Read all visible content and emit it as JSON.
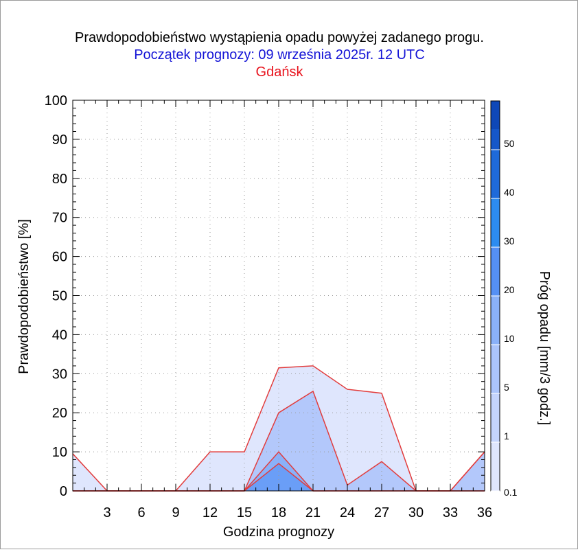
{
  "chart_data": {
    "type": "area",
    "title": "Prawdopodobieństwo wystąpienia opadu powyżej zadanego progu.",
    "subtitle": "Początek prognozy: 09 września 2025r. 12 UTC",
    "location": "Gdańsk",
    "xlabel": "Godzina prognozy",
    "ylabel": "Prawdopodobieństwo [%]",
    "colorbar_label": "Próg opadu [mm/3 godz.]",
    "xlim": [
      0,
      36
    ],
    "ylim": [
      0,
      100
    ],
    "x_ticks": [
      "3",
      "6",
      "9",
      "12",
      "15",
      "18",
      "21",
      "24",
      "27",
      "30",
      "33",
      "36"
    ],
    "y_ticks": [
      "0",
      "10",
      "20",
      "30",
      "40",
      "50",
      "60",
      "70",
      "80",
      "90",
      "100"
    ],
    "grid": true,
    "x": [
      0,
      3,
      6,
      9,
      12,
      15,
      18,
      21,
      24,
      27,
      30,
      33,
      36
    ],
    "series": [
      {
        "threshold": "0.1",
        "color": "#dfe6fd",
        "values": [
          9.5,
          0,
          0,
          0,
          10,
          10,
          31.5,
          32,
          26,
          25,
          0,
          0,
          10
        ]
      },
      {
        "threshold": "1",
        "color": "#b3c8fb",
        "values": [
          0,
          0,
          0,
          0,
          0,
          0,
          20,
          25.5,
          1.5,
          7.5,
          0,
          0,
          10
        ]
      },
      {
        "threshold": "5",
        "color": "#8ab1f9",
        "values": [
          0,
          0,
          0,
          0,
          0,
          0,
          10,
          0,
          0,
          0,
          0,
          0,
          0
        ]
      },
      {
        "threshold": "10",
        "color": "#6a9ef7",
        "values": [
          0,
          0,
          0,
          0,
          0,
          0,
          7,
          0,
          0,
          0,
          0,
          0,
          0
        ]
      }
    ],
    "colorbar": {
      "labels": [
        "0.1",
        "1",
        "5",
        "10",
        "20",
        "30",
        "40",
        "50"
      ],
      "colors": [
        "#dfe6fd",
        "#c4d4fc",
        "#abc4fb",
        "#8ab1f9",
        "#5590f5",
        "#2d8cf0",
        "#1f6ad9",
        "#1657c9",
        "#0f48b8"
      ]
    }
  }
}
